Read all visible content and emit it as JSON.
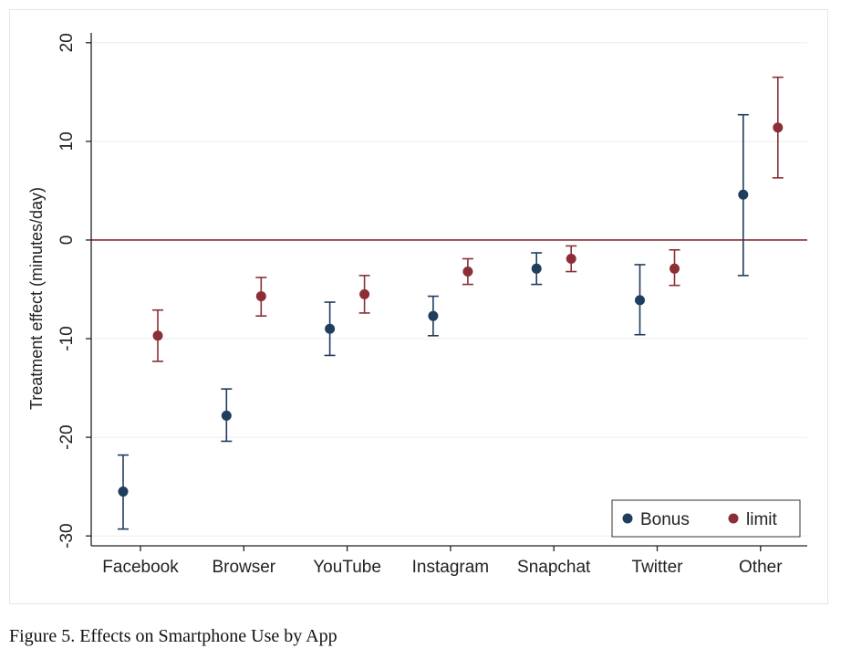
{
  "caption": "Figure 5. Effects on Smartphone Use by App",
  "chart_data": {
    "type": "scatter",
    "subtype": "dot-with-error-bars",
    "ylabel": "Treatment effect (minutes/day)",
    "xlabel": "",
    "ylim": [
      -31,
      21
    ],
    "yticks": [
      -30,
      -20,
      -10,
      0,
      10,
      20
    ],
    "grid": true,
    "reference_line": 0,
    "legend_position": "bottom-right",
    "categories": [
      "Facebook",
      "Browser",
      "YouTube",
      "Instagram",
      "Snapchat",
      "Twitter",
      "Other"
    ],
    "series": [
      {
        "name": "Bonus",
        "color": "#1f3d5c",
        "values": [
          -25.5,
          -17.8,
          -9.0,
          -7.7,
          -2.9,
          -6.1,
          4.6
        ],
        "ci_low": [
          -29.3,
          -20.4,
          -11.7,
          -9.7,
          -4.5,
          -9.6,
          -3.6
        ],
        "ci_high": [
          -21.8,
          -15.1,
          -6.3,
          -5.7,
          -1.3,
          -2.5,
          12.7
        ]
      },
      {
        "name": "limit",
        "color": "#8b2e35",
        "values": [
          -9.7,
          -5.7,
          -5.5,
          -3.2,
          -1.9,
          -2.9,
          11.4
        ],
        "ci_low": [
          -12.3,
          -7.7,
          -7.4,
          -4.5,
          -3.2,
          -4.6,
          6.3
        ],
        "ci_high": [
          -7.1,
          -3.8,
          -3.6,
          -1.9,
          -0.6,
          -1.0,
          16.5
        ]
      }
    ]
  }
}
